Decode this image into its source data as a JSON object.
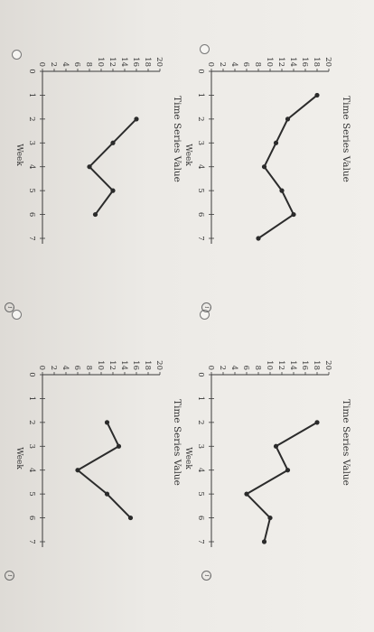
{
  "chart_data": [
    {
      "id": "A",
      "type": "line",
      "x": [
        0,
        1,
        2,
        3,
        4,
        5,
        6,
        7
      ],
      "values": [
        null,
        18,
        13,
        11,
        9,
        12,
        14,
        8
      ],
      "ylabel": "Time Series Value",
      "xlabel": "Week",
      "xlim": [
        0,
        7
      ],
      "ylim": [
        0,
        20
      ],
      "yticks": [
        0,
        2,
        4,
        6,
        8,
        10,
        12,
        14,
        16,
        18,
        20
      ],
      "xticks": [
        0,
        1,
        2,
        3,
        4,
        5,
        6,
        7
      ]
    },
    {
      "id": "B",
      "type": "line",
      "x": [
        0,
        1,
        2,
        3,
        4,
        5,
        6,
        7
      ],
      "values": [
        null,
        null,
        18,
        11,
        13,
        6,
        10,
        9
      ],
      "ylabel": "Time Series Value",
      "xlabel": "Week",
      "xlim": [
        0,
        7
      ],
      "ylim": [
        0,
        20
      ],
      "yticks": [
        0,
        2,
        4,
        6,
        8,
        10,
        12,
        14,
        16,
        18,
        20
      ],
      "xticks": [
        0,
        1,
        2,
        3,
        4,
        5,
        6,
        7
      ]
    },
    {
      "id": "C",
      "type": "line",
      "x": [
        0,
        1,
        2,
        3,
        4,
        5,
        6,
        7
      ],
      "values": [
        null,
        null,
        16,
        12,
        8,
        12,
        9,
        null
      ],
      "ylabel": "Time Series Value",
      "xlabel": "Week",
      "xlim": [
        0,
        7
      ],
      "ylim": [
        0,
        20
      ],
      "yticks": [
        0,
        2,
        4,
        6,
        8,
        10,
        12,
        14,
        16,
        18,
        20
      ],
      "xticks": [
        0,
        1,
        2,
        3,
        4,
        5,
        6,
        7
      ]
    },
    {
      "id": "D",
      "type": "line",
      "x": [
        0,
        1,
        2,
        3,
        4,
        5,
        6,
        7
      ],
      "values": [
        null,
        null,
        11,
        13,
        6,
        11,
        15,
        null
      ],
      "ylabel": "Time Series Value",
      "xlabel": "Week",
      "xlim": [
        0,
        7
      ],
      "ylim": [
        0,
        20
      ],
      "yticks": [
        0,
        2,
        4,
        6,
        8,
        10,
        12,
        14,
        16,
        18,
        20
      ],
      "xticks": [
        0,
        1,
        2,
        3,
        4,
        5,
        6,
        7
      ]
    }
  ],
  "colors": {
    "line": "#2b2b2b",
    "axis": "#3a3a3a",
    "text": "#333333"
  },
  "icons": {
    "radio": "radio-button-icon",
    "info": "info-icon"
  },
  "info_glyph": "i"
}
